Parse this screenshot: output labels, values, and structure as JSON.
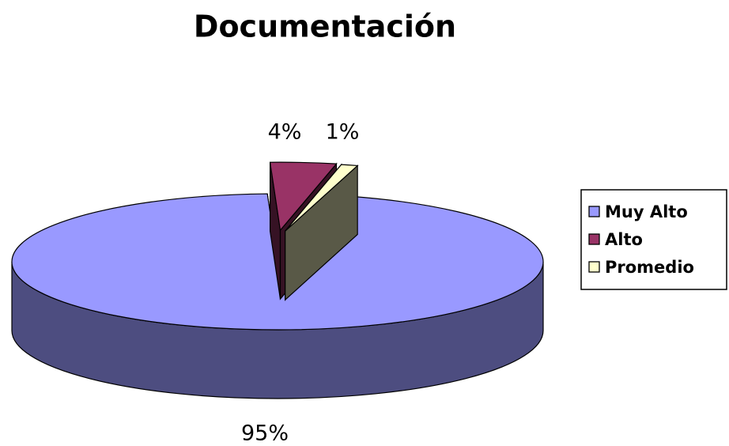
{
  "chart_data": {
    "type": "pie",
    "title": "Documentación",
    "categories": [
      "Muy Alto",
      "Alto",
      "Promedio"
    ],
    "values": [
      95,
      4,
      1
    ],
    "value_labels": [
      "95%",
      "4%",
      "1%"
    ],
    "colors": [
      "#9999ff",
      "#993366",
      "#ffffcc"
    ],
    "legend": "right"
  }
}
